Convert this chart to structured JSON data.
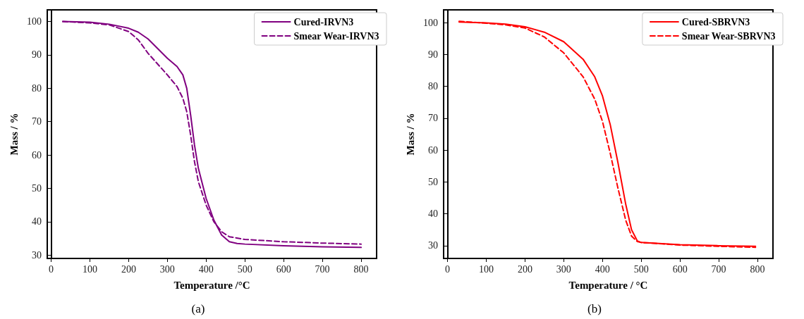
{
  "chart_data": [
    {
      "type": "line",
      "xlabel": "Temperature /°C",
      "ylabel": "Mass / %",
      "annotations": [
        "(a)"
      ],
      "legend": "top right",
      "marker": "none",
      "xlim": [
        -10,
        840
      ],
      "ylim": [
        29,
        103.5
      ],
      "xticks": [
        0,
        100,
        200,
        300,
        400,
        500,
        600,
        700,
        800
      ],
      "yticks": [
        30,
        40,
        50,
        60,
        70,
        80,
        90,
        100
      ],
      "series": [
        {
          "name": "Cured-IRVN3",
          "color": "#800080",
          "line_style": "solid",
          "x": [
            30,
            100,
            150,
            200,
            225,
            250,
            300,
            325,
            340,
            350,
            360,
            370,
            380,
            400,
            420,
            440,
            460,
            480,
            500,
            600,
            700,
            800
          ],
          "values": [
            100,
            99.8,
            99.2,
            98,
            96.8,
            94.8,
            89,
            86.5,
            84,
            80,
            72,
            63,
            56,
            47,
            40.5,
            36,
            34,
            33.5,
            33.3,
            32.8,
            32.5,
            32.3
          ]
        },
        {
          "name": "Smear Wear-IRVN3",
          "color": "#800080",
          "line_style": "dashed",
          "x": [
            30,
            100,
            150,
            200,
            225,
            250,
            300,
            325,
            340,
            350,
            360,
            370,
            380,
            400,
            420,
            440,
            460,
            500,
            600,
            700,
            800
          ],
          "values": [
            100,
            99.6,
            99,
            97,
            94.5,
            90.5,
            84,
            80.5,
            77,
            73,
            66,
            58,
            52,
            45,
            40,
            37,
            35.5,
            34.7,
            34,
            33.6,
            33.3
          ]
        }
      ]
    },
    {
      "type": "line",
      "xlabel": "Temperature / °C",
      "ylabel": "Mass / %",
      "annotations": [
        "(b)"
      ],
      "legend": "top right",
      "marker": "none",
      "xlim": [
        -10,
        840
      ],
      "ylim": [
        26,
        104
      ],
      "xticks": [
        0,
        100,
        200,
        300,
        400,
        500,
        600,
        700,
        800
      ],
      "yticks": [
        30,
        40,
        50,
        60,
        70,
        80,
        90,
        100
      ],
      "series": [
        {
          "name": "Cured-SBRVN3",
          "color": "#ff0000",
          "line_style": "solid",
          "x": [
            30,
            100,
            150,
            200,
            250,
            300,
            350,
            380,
            400,
            420,
            440,
            460,
            475,
            490,
            500,
            600,
            700,
            795
          ],
          "values": [
            100.2,
            99.9,
            99.5,
            98.7,
            97,
            94,
            88.5,
            83,
            77,
            68,
            56,
            43,
            35,
            31.5,
            31,
            30.3,
            30,
            29.8
          ]
        },
        {
          "name": "Smear Wear-SBRVN3",
          "color": "#ff0000",
          "line_style": "dashed",
          "x": [
            30,
            100,
            150,
            200,
            250,
            300,
            350,
            380,
            400,
            420,
            440,
            460,
            475,
            490,
            500,
            600,
            700,
            795
          ],
          "values": [
            100.4,
            99.8,
            99.3,
            98.3,
            95.5,
            90.5,
            83,
            76,
            69,
            59,
            48,
            38,
            33,
            31.3,
            31,
            30.2,
            29.8,
            29.5
          ]
        }
      ]
    }
  ]
}
